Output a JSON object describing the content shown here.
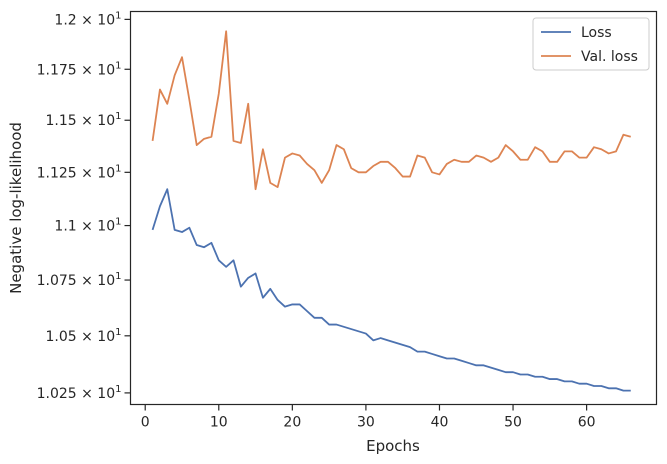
{
  "chart_data": {
    "type": "line",
    "xlabel": "Epochs",
    "ylabel": "Negative log-likelihood",
    "xlim": [
      -2,
      69.5
    ],
    "ylim": [
      10.2,
      12.04
    ],
    "y_scale": "log",
    "grid": false,
    "legend_position": "top-right",
    "x_ticks": [
      0,
      10,
      20,
      30,
      40,
      50,
      60
    ],
    "x_tick_labels": [
      "0",
      "10",
      "20",
      "30",
      "40",
      "50",
      "60"
    ],
    "y_ticks": [
      10.25,
      10.5,
      10.75,
      11.0,
      11.25,
      11.5,
      11.75,
      12.0
    ],
    "y_tick_mantissas": [
      "1.025",
      "1.05",
      "1.075",
      "1.1",
      "1.125",
      "1.15",
      "1.175",
      "1.2"
    ],
    "y_tick_base": "10",
    "y_tick_exp": "1",
    "series": [
      {
        "name": "Loss",
        "color": "#4c72b0",
        "x": [
          1,
          2,
          3,
          4,
          5,
          6,
          7,
          8,
          9,
          10,
          11,
          12,
          13,
          14,
          15,
          16,
          17,
          18,
          19,
          20,
          21,
          22,
          23,
          24,
          25,
          26,
          27,
          28,
          29,
          30,
          31,
          32,
          33,
          34,
          35,
          36,
          37,
          38,
          39,
          40,
          41,
          42,
          43,
          44,
          45,
          46,
          47,
          48,
          49,
          50,
          51,
          52,
          53,
          54,
          55,
          56,
          57,
          58,
          59,
          60,
          61,
          62,
          63,
          64,
          65,
          66
        ],
        "values": [
          10.98,
          11.09,
          11.17,
          10.98,
          10.97,
          10.99,
          10.91,
          10.9,
          10.92,
          10.84,
          10.81,
          10.84,
          10.72,
          10.76,
          10.78,
          10.67,
          10.71,
          10.66,
          10.63,
          10.64,
          10.64,
          10.61,
          10.58,
          10.58,
          10.55,
          10.55,
          10.54,
          10.53,
          10.52,
          10.51,
          10.48,
          10.49,
          10.48,
          10.47,
          10.46,
          10.45,
          10.43,
          10.43,
          10.42,
          10.41,
          10.4,
          10.4,
          10.39,
          10.38,
          10.37,
          10.37,
          10.36,
          10.35,
          10.34,
          10.34,
          10.33,
          10.33,
          10.32,
          10.32,
          10.31,
          10.31,
          10.3,
          10.3,
          10.29,
          10.29,
          10.28,
          10.28,
          10.27,
          10.27,
          10.26,
          10.26
        ]
      },
      {
        "name": "Val. loss",
        "color": "#dd8452",
        "x": [
          1,
          2,
          3,
          4,
          5,
          6,
          7,
          8,
          9,
          10,
          11,
          12,
          13,
          14,
          15,
          16,
          17,
          18,
          19,
          20,
          21,
          22,
          23,
          24,
          25,
          26,
          27,
          28,
          29,
          30,
          31,
          32,
          33,
          34,
          35,
          36,
          37,
          38,
          39,
          40,
          41,
          42,
          43,
          44,
          45,
          46,
          47,
          48,
          49,
          50,
          51,
          52,
          53,
          54,
          55,
          56,
          57,
          58,
          59,
          60,
          61,
          62,
          63,
          64,
          65,
          66
        ],
        "values": [
          11.4,
          11.65,
          11.58,
          11.72,
          11.81,
          11.6,
          11.38,
          11.41,
          11.42,
          11.63,
          11.94,
          11.4,
          11.39,
          11.58,
          11.17,
          11.36,
          11.2,
          11.18,
          11.32,
          11.34,
          11.33,
          11.29,
          11.26,
          11.2,
          11.26,
          11.38,
          11.36,
          11.27,
          11.25,
          11.25,
          11.28,
          11.3,
          11.3,
          11.27,
          11.23,
          11.23,
          11.33,
          11.32,
          11.25,
          11.24,
          11.29,
          11.31,
          11.3,
          11.3,
          11.33,
          11.32,
          11.3,
          11.32,
          11.38,
          11.35,
          11.31,
          11.31,
          11.37,
          11.35,
          11.3,
          11.3,
          11.35,
          11.35,
          11.32,
          11.32,
          11.37,
          11.36,
          11.34,
          11.35,
          11.43,
          11.42
        ]
      }
    ]
  }
}
